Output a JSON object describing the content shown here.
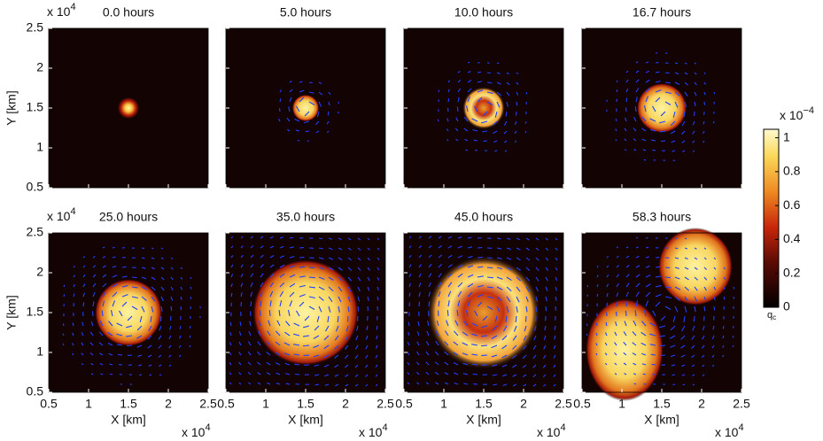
{
  "chart_data": {
    "type": "heatmap",
    "panels": [
      {
        "title": "0.0 hours"
      },
      {
        "title": "5.0 hours"
      },
      {
        "title": "10.0 hours"
      },
      {
        "title": "16.7 hours"
      },
      {
        "title": "25.0 hours"
      },
      {
        "title": "35.0 hours"
      },
      {
        "title": "45.0 hours"
      },
      {
        "title": "58.3 hours"
      }
    ],
    "xlabel": "X [km]",
    "ylabel": "Y [km]",
    "xlim": [
      0.5,
      2.5
    ],
    "ylim": [
      0.5,
      2.5
    ],
    "xticks": [
      0.5,
      1,
      1.5,
      2,
      2.5
    ],
    "yticks": [
      0.5,
      1,
      1.5,
      2,
      2.5
    ],
    "axis_scale": "x 10",
    "axis_exponent": "4",
    "colorbar": {
      "label": "q",
      "label_sub": "c",
      "scale": "x 10",
      "exponent": "−4",
      "lim": [
        0,
        1.05
      ],
      "ticks": [
        0,
        0.2,
        0.4,
        0.6,
        0.8,
        1
      ]
    }
  }
}
